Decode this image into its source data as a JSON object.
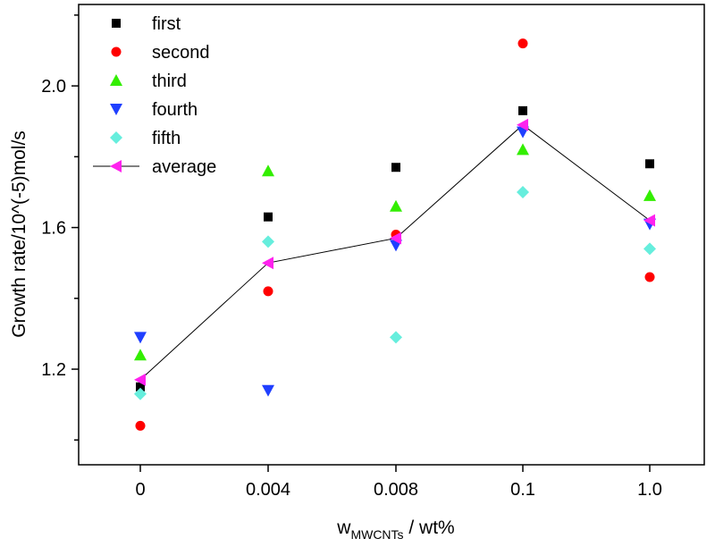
{
  "chart_data": {
    "type": "scatter",
    "title": "",
    "xlabel": "w",
    "xlabel_subscript": "MWCNTs",
    "xlabel_suffix": " / wt%",
    "ylabel": "Growth rate/10^(-5)mol/s",
    "categories": [
      "0",
      "0.004",
      "0.008",
      "0.1",
      "1.0"
    ],
    "ylim": [
      0.93,
      2.23
    ],
    "yticks": [
      1.2,
      1.6,
      2.0
    ],
    "ytick_labels": [
      "1.2",
      "1.6",
      "2.0"
    ],
    "grid": false,
    "legend_position": "top-left",
    "series": [
      {
        "name": "first",
        "marker": "square",
        "color": "#000000",
        "values": [
          1.15,
          1.63,
          1.77,
          1.93,
          1.78
        ]
      },
      {
        "name": "second",
        "marker": "circle",
        "color": "#ff0000",
        "values": [
          1.04,
          1.42,
          1.58,
          2.12,
          1.46
        ]
      },
      {
        "name": "third",
        "marker": "triangle-up",
        "color": "#33ee00",
        "values": [
          1.24,
          1.76,
          1.66,
          1.82,
          1.69
        ]
      },
      {
        "name": "fourth",
        "marker": "triangle-down",
        "color": "#1f3fff",
        "values": [
          1.29,
          1.14,
          1.55,
          1.87,
          1.61
        ]
      },
      {
        "name": "fifth",
        "marker": "diamond",
        "color": "#66eedd",
        "values": [
          1.13,
          1.56,
          1.29,
          1.7,
          1.54
        ]
      },
      {
        "name": "average",
        "marker": "triangle-left",
        "color": "#ff22ee",
        "line_color": "#000000",
        "values": [
          1.17,
          1.5,
          1.57,
          1.89,
          1.62
        ]
      }
    ]
  }
}
